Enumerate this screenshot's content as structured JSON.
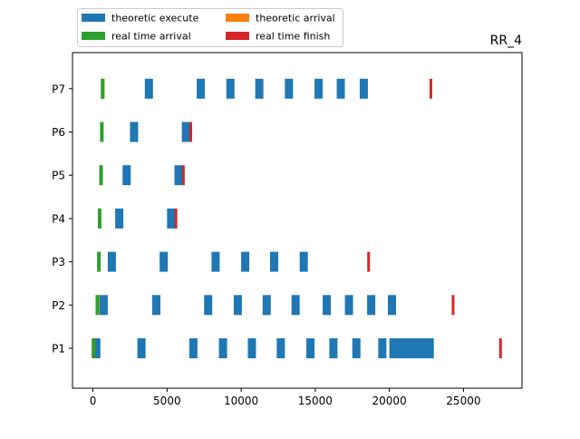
{
  "chart_data": {
    "type": "gantt",
    "title": "RR_4",
    "xlabel": "",
    "ylabel": "",
    "xlim": [
      -1380,
      28950
    ],
    "x_ticks": [
      0,
      5000,
      10000,
      15000,
      20000,
      25000
    ],
    "categories": [
      "P1",
      "P2",
      "P3",
      "P4",
      "P5",
      "P6",
      "P7"
    ],
    "grid": false,
    "legend": {
      "placement": "top-left, above axes",
      "columns": 2,
      "entries": [
        {
          "label": "theoretic execute",
          "color": "#1f77b4"
        },
        {
          "label": "real time arrival",
          "color": "#2ca02c"
        },
        {
          "label": "theoretic arrival",
          "color": "#ff7f0e"
        },
        {
          "label": "real time finish",
          "color": "#d62728"
        }
      ]
    },
    "series": [
      {
        "name": "theoretic execute",
        "color": "#1f77b4",
        "intervals": [
          {
            "task": "P1",
            "segments": [
              [
                0,
                500
              ],
              [
                3000,
                3550
              ],
              [
                6500,
                7050
              ],
              [
                8500,
                9050
              ],
              [
                10450,
                11000
              ],
              [
                12400,
                12950
              ],
              [
                14400,
                14950
              ],
              [
                15950,
                16500
              ],
              [
                17500,
                18050
              ],
              [
                19250,
                19800
              ],
              [
                20000,
                23000
              ]
            ]
          },
          {
            "task": "P2",
            "segments": [
              [
                450,
                1000
              ],
              [
                4000,
                4550
              ],
              [
                7500,
                8050
              ],
              [
                9500,
                10050
              ],
              [
                11450,
                12000
              ],
              [
                13400,
                13950
              ],
              [
                15500,
                16050
              ],
              [
                17000,
                17550
              ],
              [
                18500,
                19050
              ],
              [
                19900,
                20450
              ]
            ]
          },
          {
            "task": "P3",
            "segments": [
              [
                1000,
                1550
              ],
              [
                4500,
                5050
              ],
              [
                8000,
                8550
              ],
              [
                10000,
                10550
              ],
              [
                11950,
                12500
              ],
              [
                13950,
                14500
              ]
            ]
          },
          {
            "task": "P4",
            "segments": [
              [
                1500,
                2050
              ],
              [
                5000,
                5550
              ]
            ]
          },
          {
            "task": "P5",
            "segments": [
              [
                2000,
                2550
              ],
              [
                5500,
                6050
              ]
            ]
          },
          {
            "task": "P6",
            "segments": [
              [
                2500,
                3050
              ],
              [
                6000,
                6550
              ]
            ]
          },
          {
            "task": "P7",
            "segments": [
              [
                3500,
                4050
              ],
              [
                7000,
                7550
              ],
              [
                9000,
                9550
              ],
              [
                10950,
                11500
              ],
              [
                12950,
                13500
              ],
              [
                14950,
                15500
              ],
              [
                16450,
                17000
              ],
              [
                18000,
                18550
              ]
            ]
          }
        ]
      },
      {
        "name": "theoretic arrival",
        "color": "#ff7f0e",
        "points": [
          {
            "task": "P1",
            "x": 0
          },
          {
            "task": "P2",
            "x": 350
          },
          {
            "task": "P3",
            "x": 400
          },
          {
            "task": "P4",
            "x": 450
          },
          {
            "task": "P5",
            "x": 550
          },
          {
            "task": "P6",
            "x": 600
          },
          {
            "task": "P7",
            "x": 700
          }
        ]
      },
      {
        "name": "real time arrival",
        "color": "#2ca02c",
        "points": [
          {
            "task": "P1",
            "x": 50
          },
          {
            "task": "P2",
            "x": 300
          },
          {
            "task": "P3",
            "x": 400
          },
          {
            "task": "P4",
            "x": 450
          },
          {
            "task": "P5",
            "x": 550
          },
          {
            "task": "P6",
            "x": 600
          },
          {
            "task": "P7",
            "x": 650
          }
        ]
      },
      {
        "name": "real time finish",
        "color": "#d62728",
        "points": [
          {
            "task": "P1",
            "x": 27500
          },
          {
            "task": "P2",
            "x": 24300
          },
          {
            "task": "P3",
            "x": 18600
          },
          {
            "task": "P4",
            "x": 5600
          },
          {
            "task": "P5",
            "x": 6100
          },
          {
            "task": "P6",
            "x": 6600
          },
          {
            "task": "P7",
            "x": 22800
          }
        ]
      }
    ]
  }
}
